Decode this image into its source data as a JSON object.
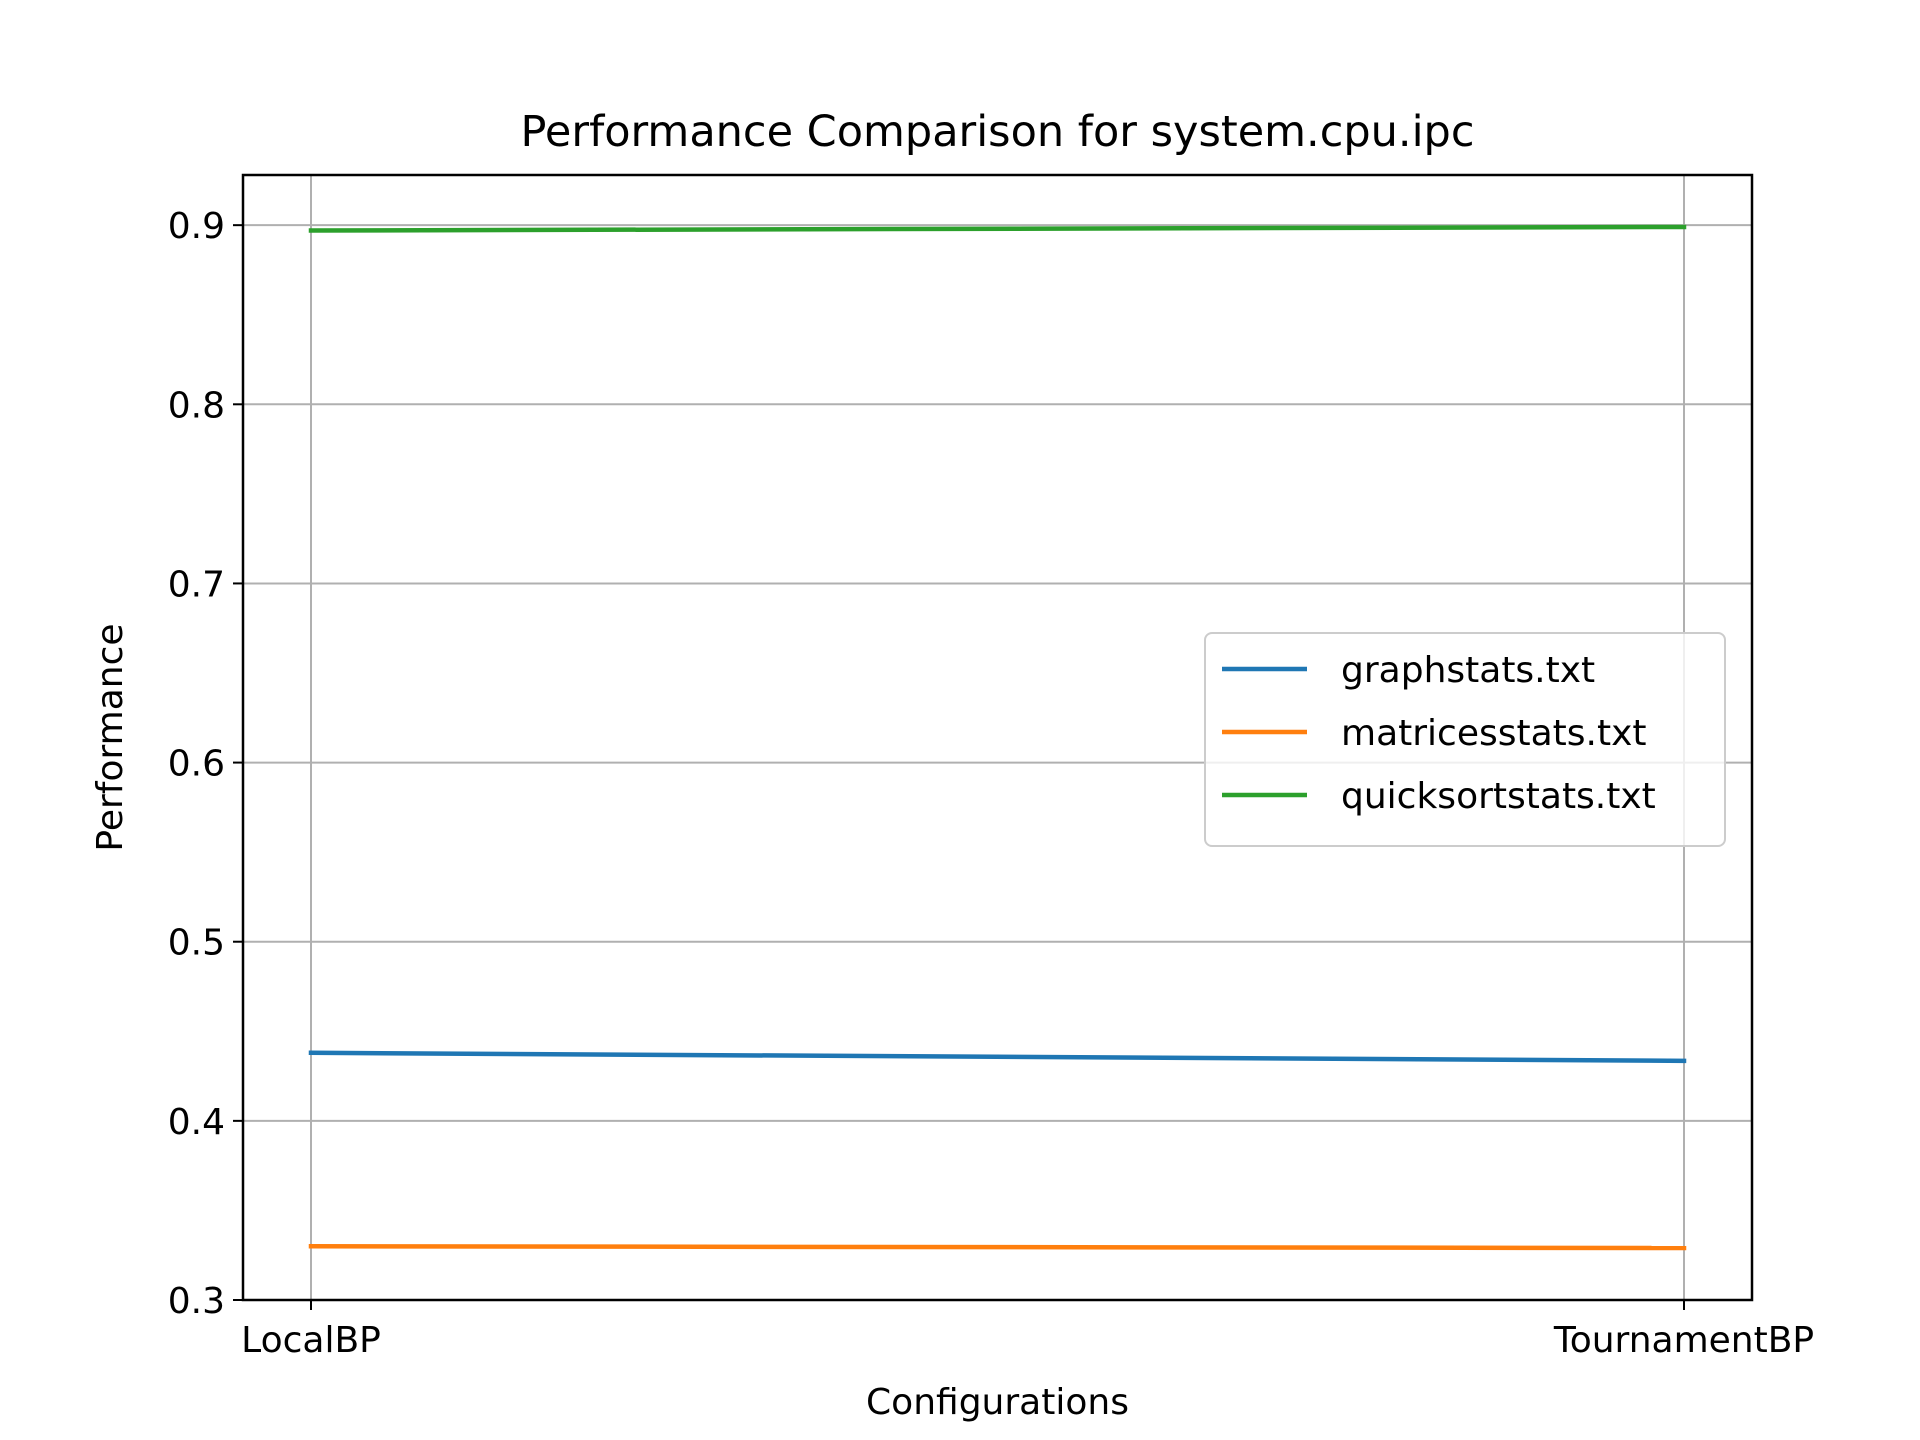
{
  "chart_data": {
    "type": "line",
    "title": "Performance Comparison for system.cpu.ipc",
    "xlabel": "Configurations",
    "ylabel": "Performance",
    "categories": [
      "LocalBP",
      "TournamentBP"
    ],
    "ylim": [
      0.3,
      0.928
    ],
    "yticks": [
      0.3,
      0.4,
      0.5,
      0.6,
      0.7,
      0.8,
      0.9
    ],
    "ytick_labels": [
      "0.3",
      "0.4",
      "0.5",
      "0.6",
      "0.7",
      "0.8",
      "0.9"
    ],
    "grid": true,
    "legend_position": "center-right",
    "series": [
      {
        "name": "graphstats.txt",
        "color": "#1f77b4",
        "values": [
          0.438,
          0.4335
        ]
      },
      {
        "name": "matricesstats.txt",
        "color": "#ff7f0e",
        "values": [
          0.33,
          0.329
        ]
      },
      {
        "name": "quicksortstats.txt",
        "color": "#2ca02c",
        "values": [
          0.897,
          0.899
        ]
      }
    ]
  }
}
